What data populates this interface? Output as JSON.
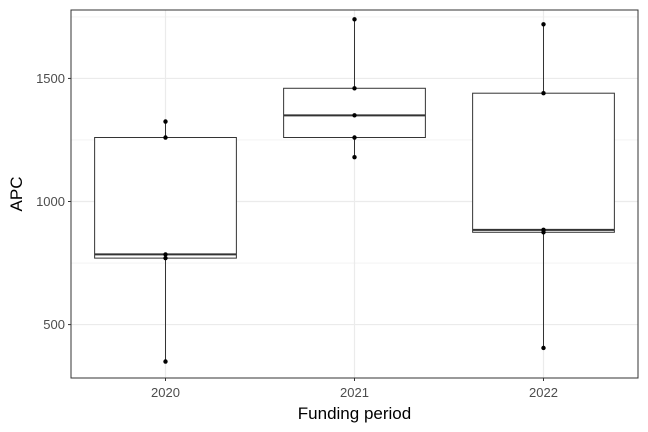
{
  "chart_data": {
    "type": "boxplot",
    "title": "",
    "xlabel": "Funding period",
    "ylabel": "APC",
    "categories": [
      "2020",
      "2021",
      "2022"
    ],
    "ylim": [
      283,
      1778
    ],
    "y_ticks": [
      500,
      1000,
      1500
    ],
    "grid": true,
    "boxes": [
      {
        "category": "2020",
        "min": 350,
        "q1": 770,
        "median": 785,
        "q3": 1260,
        "max": 1325
      },
      {
        "category": "2021",
        "min": 1180,
        "q1": 1260,
        "median": 1350,
        "q3": 1460,
        "max": 1740
      },
      {
        "category": "2022",
        "min": 405,
        "q1": 875,
        "median": 885,
        "q3": 1440,
        "max": 1720
      }
    ],
    "points": [
      {
        "category": "2020",
        "values": [
          350,
          770,
          785,
          1260,
          1325
        ]
      },
      {
        "category": "2021",
        "values": [
          1180,
          1260,
          1350,
          1460,
          1740
        ]
      },
      {
        "category": "2022",
        "values": [
          405,
          875,
          885,
          1440,
          1720
        ]
      }
    ],
    "colors": {
      "grid": "#ebebeb",
      "box_stroke": "#333333",
      "point": "#000000",
      "panel_border": "#333333"
    }
  }
}
